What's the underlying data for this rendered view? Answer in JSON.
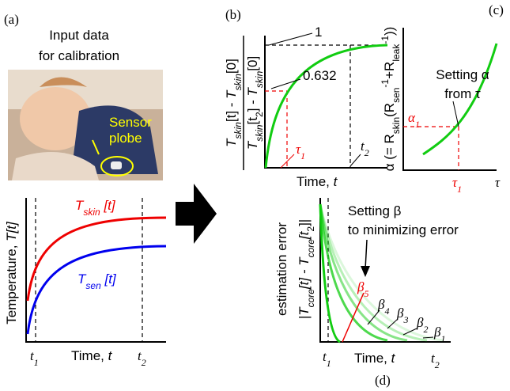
{
  "panel_a": {
    "label": "(a)",
    "title": [
      "Input data",
      "for calibration"
    ],
    "photo_text": [
      "Sensor",
      "plobe"
    ],
    "y_axis": [
      "Temperature, ",
      "T[t]"
    ],
    "x_axis": [
      "Time, ",
      "t"
    ],
    "t1": [
      "t",
      "1"
    ],
    "t2": [
      "t",
      "2"
    ],
    "skin": [
      "T",
      "skin",
      " [t]"
    ],
    "sen": [
      "T",
      "sen",
      " [t]"
    ]
  },
  "panel_b": {
    "label": "(b)",
    "numerator": [
      "T",
      "skin",
      "[t] - ",
      "T",
      "skin",
      "[0]"
    ],
    "denominator": [
      "T",
      "skin",
      "[t",
      "2",
      "] - ",
      "T",
      "skin",
      "[0]"
    ],
    "one": 1,
    "level": 0.632,
    "tau1": [
      "τ",
      "1"
    ],
    "t2": [
      "t",
      "2"
    ],
    "x_axis": [
      "Time, ",
      "t"
    ]
  },
  "panel_c": {
    "label": "(c)",
    "y_axis": [
      "α (= R",
      "skin",
      "(R",
      "sen",
      "-1",
      "+R",
      "leak",
      "-1",
      "))"
    ],
    "note": [
      "Setting α",
      "from τ"
    ],
    "alpha1": [
      "α",
      "1"
    ],
    "tau1": [
      "τ",
      "1"
    ],
    "tau": "τ"
  },
  "panel_d": {
    "label": "(d)",
    "y_axis": [
      "estimation error",
      "|T",
      "core",
      "[t] - T",
      "core",
      "[t",
      "2",
      "]|"
    ],
    "note": [
      "Setting β",
      "to minimizing error"
    ],
    "betas": [
      [
        "β",
        "5"
      ],
      [
        "β",
        "4"
      ],
      [
        "β",
        "3"
      ],
      [
        "β",
        "2"
      ],
      [
        "β",
        "1"
      ]
    ],
    "t1": [
      "t",
      "1"
    ],
    "t2": [
      "t",
      "2"
    ],
    "x_axis": [
      "Time, ",
      "t"
    ]
  }
}
